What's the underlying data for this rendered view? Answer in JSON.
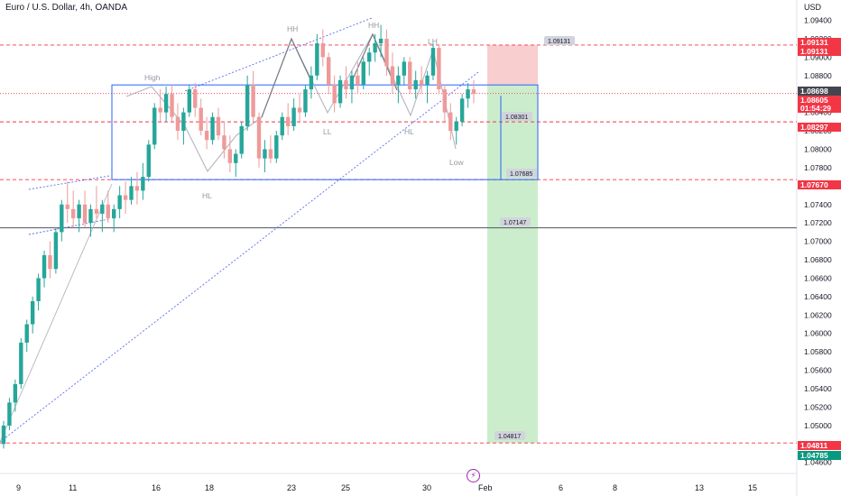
{
  "header": {
    "title": "Euro / U.S. Dollar, 4h, OANDA",
    "currency": "USD"
  },
  "colors": {
    "bull": "#26a69a",
    "bear": "#ef9a9a",
    "stop": "#f8c6c6",
    "target": "#c8ecc9",
    "red_tag": "#f23645",
    "green_tag": "#089981",
    "dark_tag": "#434651",
    "box": "#2962ff"
  },
  "icons": {
    "bolt": "lightning-icon"
  },
  "chart_data": {
    "type": "candlestick",
    "title": "Euro / U.S. Dollar, 4h, OANDA",
    "ylim": [
      1.0448,
      1.0962
    ],
    "y_ticks": [
      "1.04600",
      "1.04800",
      "1.05000",
      "1.05200",
      "1.05400",
      "1.05600",
      "1.05800",
      "1.06000",
      "1.06200",
      "1.06400",
      "1.06600",
      "1.06800",
      "1.07000",
      "1.07200",
      "1.07400",
      "1.07600",
      "1.07800",
      "1.08000",
      "1.08200",
      "1.08400",
      "1.08600",
      "1.08800",
      "1.09000",
      "1.09200",
      "1.09400"
    ],
    "x_ticks": [
      "9",
      "11",
      "16",
      "18",
      "23",
      "25",
      "30",
      "Feb",
      "6",
      "8",
      "13",
      "15"
    ],
    "price_axis_tags": [
      {
        "value": "1.09131",
        "color": "red"
      },
      {
        "value": "1.09131",
        "color": "red"
      },
      {
        "value": "1.08698",
        "color": "dark"
      },
      {
        "value": "1.08605",
        "color": "red"
      },
      {
        "value": "01:54:29",
        "color": "red"
      },
      {
        "value": "1.08297",
        "color": "red"
      },
      {
        "value": "1.07670",
        "color": "red"
      },
      {
        "value": "1.04811",
        "color": "red"
      },
      {
        "value": "1.04785",
        "color": "green"
      }
    ],
    "annotations": [
      "High",
      "HL",
      "HH",
      "HH",
      "LH",
      "LL",
      "HL",
      "Low"
    ],
    "level_labels": [
      "1.09131",
      "1.08301",
      "1.07685",
      "1.07147",
      "1.04817"
    ],
    "levels": {
      "stop_top": 1.09131,
      "range_top": 1.08698,
      "dotted_current": 1.08605,
      "mid_level": 1.08297,
      "range_bottom": 1.0767,
      "support": 1.07147,
      "target": 1.04811
    },
    "candles": [
      [
        1.048,
        1.0505,
        1.0475,
        1.05
      ],
      [
        1.05,
        1.053,
        1.0495,
        1.0525
      ],
      [
        1.0525,
        1.055,
        1.0515,
        1.0545
      ],
      [
        1.0545,
        1.0595,
        1.054,
        1.059
      ],
      [
        1.059,
        1.0615,
        1.058,
        1.061
      ],
      [
        1.061,
        1.064,
        1.06,
        1.0635
      ],
      [
        1.0635,
        1.0665,
        1.0625,
        1.066
      ],
      [
        1.066,
        1.069,
        1.065,
        1.0685
      ],
      [
        1.0685,
        1.07,
        1.066,
        1.067
      ],
      [
        1.067,
        1.0715,
        1.0665,
        1.071
      ],
      [
        1.071,
        1.0745,
        1.07,
        1.074
      ],
      [
        1.074,
        1.0765,
        1.072,
        1.0735
      ],
      [
        1.0735,
        1.0755,
        1.0715,
        1.0725
      ],
      [
        1.0725,
        1.0745,
        1.071,
        1.074
      ],
      [
        1.074,
        1.0755,
        1.0715,
        1.072
      ],
      [
        1.072,
        1.074,
        1.0705,
        1.0735
      ],
      [
        1.0735,
        1.076,
        1.0725,
        1.073
      ],
      [
        1.073,
        1.0745,
        1.071,
        1.074
      ],
      [
        1.074,
        1.0755,
        1.072,
        1.0725
      ],
      [
        1.0725,
        1.074,
        1.071,
        1.0735
      ],
      [
        1.0735,
        1.076,
        1.0725,
        1.075
      ],
      [
        1.075,
        1.0765,
        1.073,
        1.0745
      ],
      [
        1.0745,
        1.077,
        1.074,
        1.076
      ],
      [
        1.076,
        1.0775,
        1.074,
        1.0755
      ],
      [
        1.0755,
        1.0785,
        1.0745,
        1.077
      ],
      [
        1.077,
        1.081,
        1.0765,
        1.0805
      ],
      [
        1.0805,
        1.085,
        1.08,
        1.0845
      ],
      [
        1.0845,
        1.0865,
        1.083,
        1.084
      ],
      [
        1.084,
        1.0868,
        1.083,
        1.086
      ],
      [
        1.086,
        1.087,
        1.083,
        1.0835
      ],
      [
        1.0835,
        1.085,
        1.081,
        1.082
      ],
      [
        1.082,
        1.0845,
        1.0805,
        1.084
      ],
      [
        1.084,
        1.087,
        1.0835,
        1.0865
      ],
      [
        1.0865,
        1.0872,
        1.0835,
        1.0845
      ],
      [
        1.0845,
        1.0855,
        1.0815,
        1.082
      ],
      [
        1.082,
        1.0835,
        1.08,
        1.081
      ],
      [
        1.081,
        1.084,
        1.0805,
        1.0835
      ],
      [
        1.0835,
        1.0845,
        1.081,
        1.0815
      ],
      [
        1.0815,
        1.083,
        1.079,
        1.08
      ],
      [
        1.08,
        1.0815,
        1.0775,
        1.0785
      ],
      [
        1.0785,
        1.08,
        1.077,
        1.0795
      ],
      [
        1.0795,
        1.083,
        1.079,
        1.0825
      ],
      [
        1.0825,
        1.088,
        1.082,
        1.087
      ],
      [
        1.087,
        1.0885,
        1.083,
        1.0835
      ],
      [
        1.0835,
        1.084,
        1.078,
        1.079
      ],
      [
        1.079,
        1.081,
        1.0775,
        1.08
      ],
      [
        1.08,
        1.0815,
        1.0785,
        1.079
      ],
      [
        1.079,
        1.082,
        1.0785,
        1.0815
      ],
      [
        1.0815,
        1.084,
        1.081,
        1.0835
      ],
      [
        1.0835,
        1.085,
        1.0815,
        1.0825
      ],
      [
        1.0825,
        1.0855,
        1.082,
        1.0845
      ],
      [
        1.0845,
        1.086,
        1.083,
        1.084
      ],
      [
        1.084,
        1.087,
        1.0835,
        1.0865
      ],
      [
        1.0865,
        1.089,
        1.0855,
        1.088
      ],
      [
        1.088,
        1.0925,
        1.0875,
        1.0915
      ],
      [
        1.0915,
        1.093,
        1.089,
        1.09
      ],
      [
        1.09,
        1.0905,
        1.086,
        1.087
      ],
      [
        1.087,
        1.088,
        1.084,
        1.085
      ],
      [
        1.085,
        1.088,
        1.0845,
        1.0875
      ],
      [
        1.0875,
        1.089,
        1.0855,
        1.0865
      ],
      [
        1.0865,
        1.0885,
        1.085,
        1.088
      ],
      [
        1.088,
        1.0895,
        1.086,
        1.087
      ],
      [
        1.087,
        1.09,
        1.0865,
        1.0895
      ],
      [
        1.0895,
        1.091,
        1.088,
        1.0905
      ],
      [
        1.0905,
        1.0925,
        1.0895,
        1.0915
      ],
      [
        1.0915,
        1.0935,
        1.09,
        1.092
      ],
      [
        1.092,
        1.093,
        1.088,
        1.089
      ],
      [
        1.089,
        1.0905,
        1.086,
        1.087
      ],
      [
        1.087,
        1.089,
        1.085,
        1.088
      ],
      [
        1.088,
        1.09,
        1.087,
        1.0895
      ],
      [
        1.0895,
        1.09,
        1.086,
        1.0865
      ],
      [
        1.0865,
        1.0885,
        1.0855,
        1.0875
      ],
      [
        1.0875,
        1.089,
        1.086,
        1.087
      ],
      [
        1.087,
        1.0885,
        1.085,
        1.088
      ],
      [
        1.088,
        1.0915,
        1.0875,
        1.091
      ],
      [
        1.091,
        1.0913,
        1.086,
        1.0865
      ],
      [
        1.0865,
        1.087,
        1.083,
        1.084
      ],
      [
        1.084,
        1.085,
        1.081,
        1.082
      ],
      [
        1.082,
        1.0835,
        1.0805,
        1.083
      ],
      [
        1.083,
        1.086,
        1.0825,
        1.0855
      ],
      [
        1.0855,
        1.0872,
        1.0845,
        1.0865
      ],
      [
        1.0865,
        1.0875,
        1.085,
        1.086
      ]
    ]
  }
}
